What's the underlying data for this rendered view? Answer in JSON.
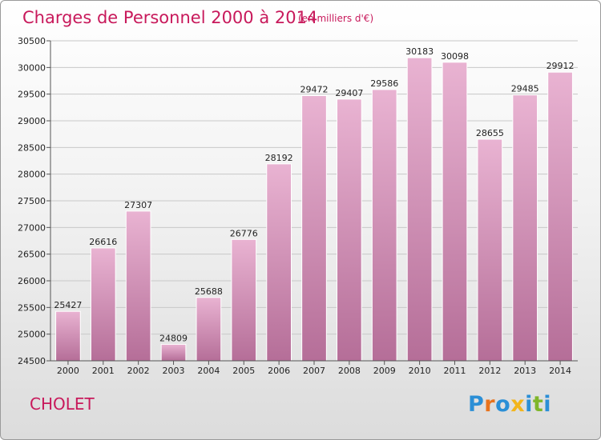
{
  "title": "Charges de Personnel 2000 à 2014",
  "subtitle": "(en milliers d'€)",
  "city": "CHOLET",
  "logo": {
    "letters": [
      "P",
      "r",
      "o",
      "x",
      "i",
      "t",
      "i"
    ],
    "colors": [
      "#2b8fd6",
      "#e8731d",
      "#2b8fd6",
      "#f2b51c",
      "#2b8fd6",
      "#7fb62a",
      "#2b8fd6"
    ]
  },
  "colors": {
    "bar_light": "#e9b3d2",
    "bar_dark": "#b56e98",
    "title": "#c8195b",
    "axis": "#555555",
    "grid": "#c8c8c8"
  },
  "chart_data": {
    "type": "bar",
    "categories": [
      "2000",
      "2001",
      "2002",
      "2003",
      "2004",
      "2005",
      "2006",
      "2007",
      "2008",
      "2009",
      "2010",
      "2011",
      "2012",
      "2013",
      "2014"
    ],
    "values": [
      25427,
      26616,
      27307,
      24809,
      25688,
      26776,
      28192,
      29472,
      29407,
      29586,
      30183,
      30098,
      28655,
      29485,
      29912
    ],
    "ylim": [
      24500,
      30500
    ],
    "yticks": [
      24500,
      25000,
      25500,
      26000,
      26500,
      27000,
      27500,
      28000,
      28500,
      29000,
      29500,
      30000,
      30500
    ],
    "grid": true,
    "title": "Charges de Personnel 2000 à 2014",
    "xlabel": "",
    "ylabel": ""
  }
}
